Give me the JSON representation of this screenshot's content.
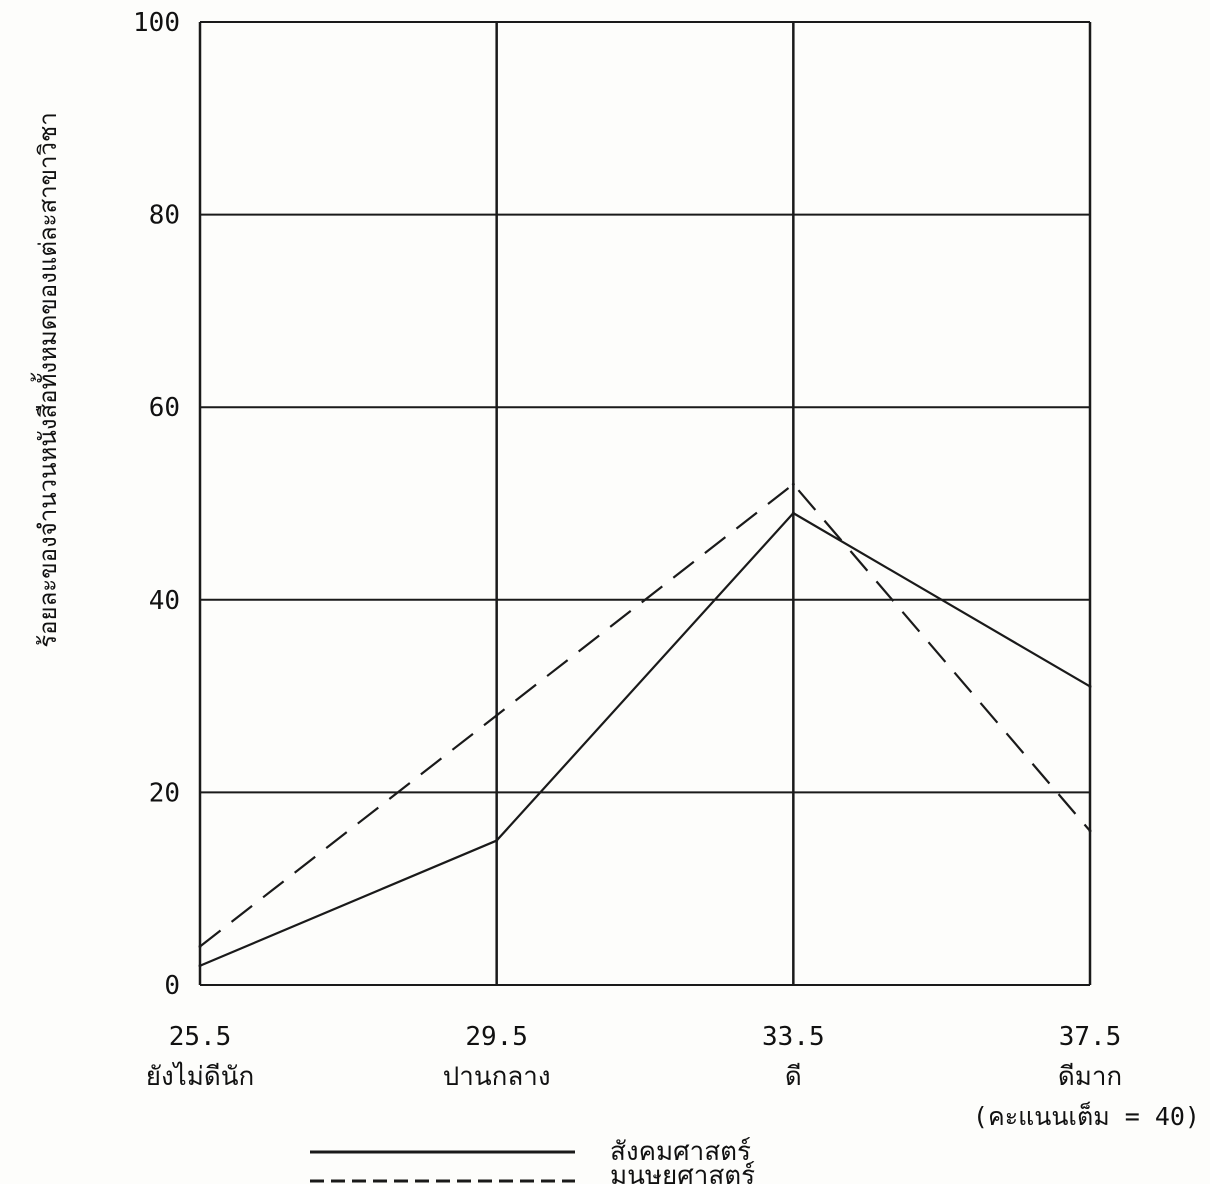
{
  "chart_data": {
    "type": "line",
    "title": "",
    "ylabel": "ร้อยละของจำนวนหนังสือทั้งหมดของแต่ละสาขาวิชา",
    "xlabel": "",
    "x_note": "(คะแนนเต็ม = 40)",
    "ylim": [
      0,
      100
    ],
    "yticks": [
      "0",
      "20",
      "40",
      "60",
      "80",
      "100"
    ],
    "ytick_values": [
      0,
      20,
      40,
      60,
      80,
      100
    ],
    "x": [
      25.5,
      29.5,
      33.5,
      37.5
    ],
    "xlim": [
      25.5,
      37.5
    ],
    "categories": [
      {
        "value": "25.5",
        "label": "ยังไม่ดีนัก"
      },
      {
        "value": "29.5",
        "label": "ปานกลาง"
      },
      {
        "value": "33.5",
        "label": "ดี"
      },
      {
        "value": "37.5",
        "label": "ดีมาก"
      }
    ],
    "grid": true,
    "legend_position": "bottom",
    "series": [
      {
        "name": "สังคมศาสตร์",
        "style": "solid",
        "color": "#1a1a1a",
        "values": [
          2,
          15,
          49,
          31
        ]
      },
      {
        "name": "มนุษยศาสตร์",
        "style": "dashed",
        "color": "#1a1a1a",
        "values": [
          4,
          28,
          52,
          16
        ]
      }
    ]
  }
}
